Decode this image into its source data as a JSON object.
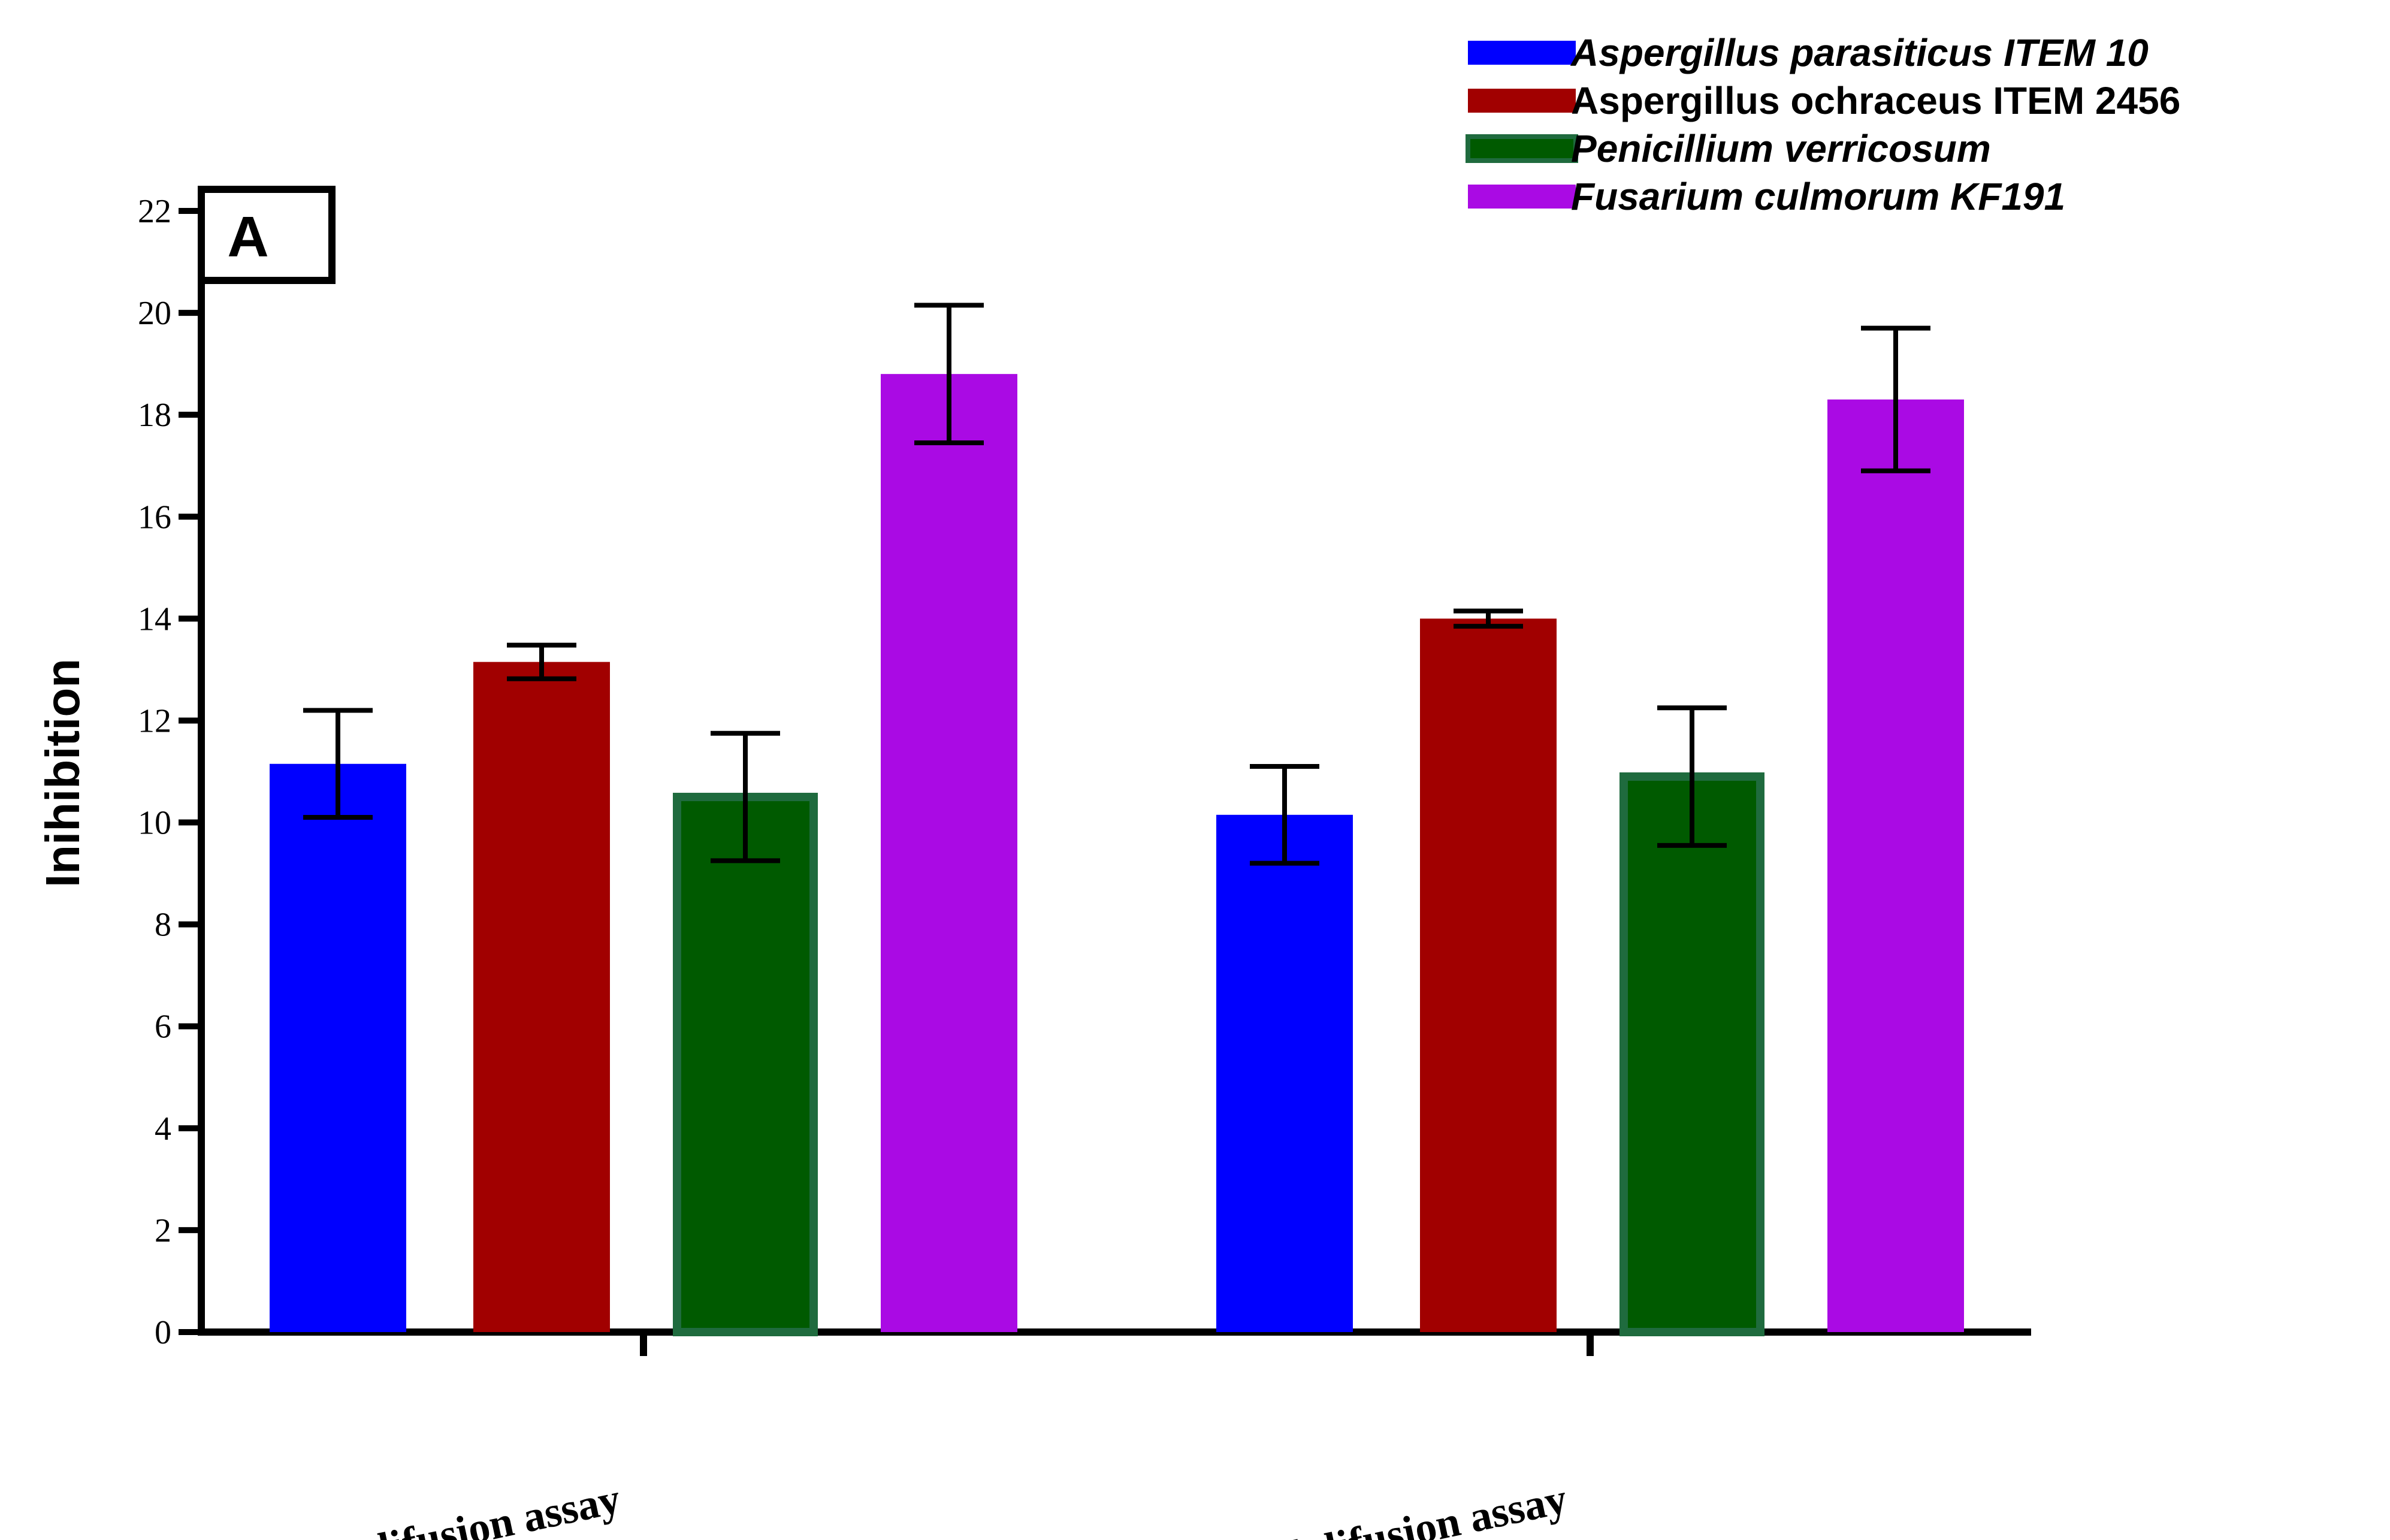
{
  "chart_data": {
    "type": "bar",
    "panel_label": "A",
    "title": "",
    "xlabel": "",
    "ylabel": "Inihibition",
    "ylim": [
      0,
      22
    ],
    "yticks": [
      0,
      2,
      4,
      6,
      8,
      10,
      12,
      14,
      16,
      18,
      20,
      22
    ],
    "categories": [
      "Disk difusion assay",
      "Well difusion assay"
    ],
    "legend_position": "top-right",
    "series": [
      {
        "name": "Aspergillus parasiticus ITEM 10",
        "italic": true,
        "color": "#0000FF",
        "values": [
          11.15,
          10.15
        ],
        "errors": [
          1.05,
          0.95
        ]
      },
      {
        "name": "Aspergillus ochraceus ITEM 2456",
        "italic": false,
        "color": "#A10000",
        "values": [
          13.15,
          14.0
        ],
        "errors": [
          0.33,
          0.15
        ]
      },
      {
        "name": "Penicillium verricosum",
        "italic": true,
        "color": "#005A00",
        "border": "#1F6B3E",
        "values": [
          10.5,
          10.9
        ],
        "errors": [
          1.25,
          1.35
        ]
      },
      {
        "name": "Fusarium culmorum KF191",
        "italic": true,
        "color": "#AA0AE4",
        "values": [
          18.8,
          18.3
        ],
        "errors": [
          1.35,
          1.4
        ]
      }
    ]
  }
}
